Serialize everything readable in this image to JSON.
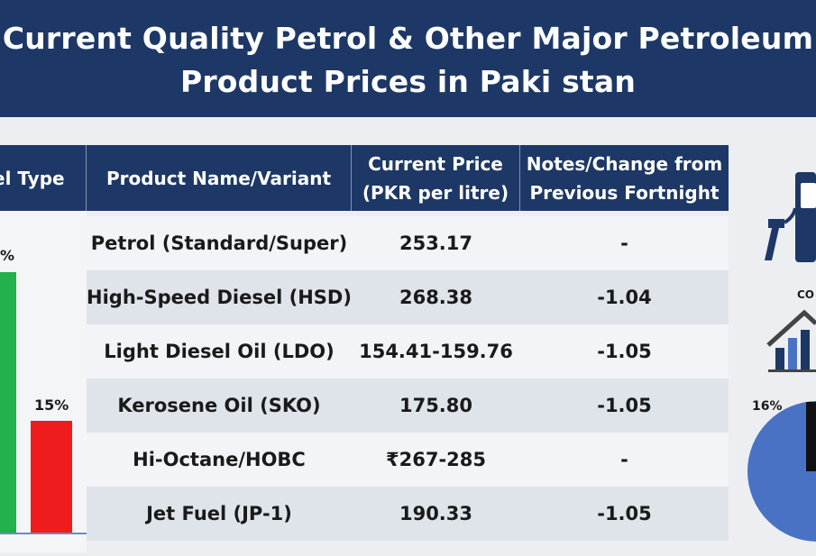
{
  "header": {
    "title_line1": "Current Quality Petrol & Other Major Petroleum",
    "title_line2": "Product Prices in Paki stan"
  },
  "table": {
    "headers": {
      "fuel_type": "el Type",
      "product": "Product Name/Variant",
      "price_line1": "Current Price",
      "price_line2": "(PKR per litre)",
      "notes_line1": "Notes/Change from",
      "notes_line2": "Previous Fortnight"
    },
    "rows": [
      {
        "product": "Petrol (Standard/Super)",
        "price": "253.17",
        "change": "-"
      },
      {
        "product": "High-Speed Diesel (HSD)",
        "price": "268.38",
        "change": "-1.04"
      },
      {
        "product": "Light Diesel Oil (LDO)",
        "price": "154.41-159.76",
        "change": "-1.05"
      },
      {
        "product": "Kerosene Oil (SKO)",
        "price": "175.80",
        "change": "-1.05"
      },
      {
        "product": "Hi-Octane/HOBC",
        "price": "₹267-285",
        "change": "-"
      },
      {
        "product": "Jet Fuel (JP-1)",
        "price": "190.33",
        "change": "-1.05"
      }
    ]
  },
  "left_chart": {
    "bar1_label": "%",
    "bar2_label": "15%",
    "bar1_color": "#22b14c",
    "bar2_color": "#ee1c1c"
  },
  "right_deco": {
    "label_co": "CO",
    "pie_label": "16%",
    "pie_color": "#4a72c4",
    "icon_color": "#1d3866"
  }
}
